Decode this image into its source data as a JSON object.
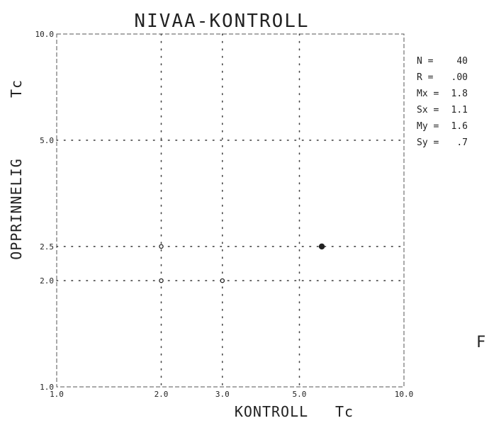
{
  "chart_data": {
    "type": "scatter",
    "title": "NIVAA-KONTROLL",
    "xlabel": "KONTROLL",
    "xunit": "Tc",
    "ylabel": "OPPRINNELIG",
    "yunit": "Tc",
    "xlim": [
      1.0,
      10.0
    ],
    "ylim": [
      1.0,
      10.0
    ],
    "scale": "log",
    "grid": true,
    "xtick_labels": [
      "1.0",
      "2.0",
      "3.0",
      "5.0",
      "10.0"
    ],
    "ytick_labels": [
      "1.0",
      "2.0",
      "2.5",
      "5.0",
      "10.0"
    ],
    "series": [
      {
        "x": [
          2.0,
          3.0,
          2.0,
          5.8
        ],
        "y": [
          2.0,
          2.0,
          2.5,
          2.5
        ]
      }
    ],
    "annotations": {
      "stats": [
        {
          "label": "N =",
          "value": "40"
        },
        {
          "label": "R =",
          "value": ".00"
        },
        {
          "label": "Mx =",
          "value": "1.8"
        },
        {
          "label": "Sx =",
          "value": "1.1"
        },
        {
          "label": "My =",
          "value": "1.6"
        },
        {
          "label": "Sy =",
          "value": ".7"
        }
      ],
      "stray_char": "F"
    }
  }
}
